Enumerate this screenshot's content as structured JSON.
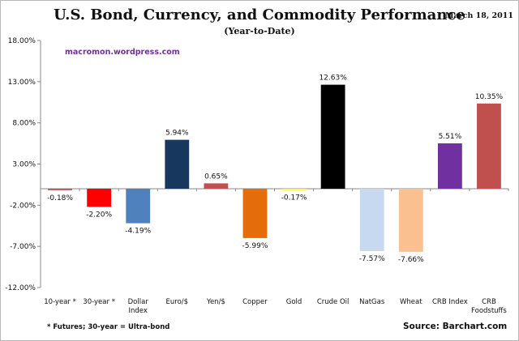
{
  "chart_data": {
    "type": "bar",
    "title": "U.S. Bond, Currency, and Commodity Performance",
    "subtitle": "(Year-to-Date)",
    "date": "March 18, 2011",
    "watermark": "macromon.wordpress.com",
    "footnote": "* Futures; 30-year = Ultra-bond",
    "source": "Source:  Barchart.com",
    "categories": [
      [
        "10-year *"
      ],
      [
        "30-year *"
      ],
      [
        "Dollar",
        "Index"
      ],
      [
        "Euro/$"
      ],
      [
        "Yen/$"
      ],
      [
        "Copper"
      ],
      [
        "Gold"
      ],
      [
        "Crude Oil"
      ],
      [
        "NatGas"
      ],
      [
        "Wheat"
      ],
      [
        "CRB Index"
      ],
      [
        "CRB",
        "Foodstuffs"
      ]
    ],
    "values": [
      -0.18,
      -2.2,
      -4.19,
      5.94,
      0.65,
      -5.99,
      -0.17,
      12.63,
      -7.57,
      -7.66,
      5.51,
      10.35
    ],
    "data_labels": [
      "-0.18%",
      "-2.20%",
      "-4.19%",
      "5.94%",
      "0.65%",
      "-5.99%",
      "-0.17%",
      "12.63%",
      "-7.57%",
      "-7.66%",
      "5.51%",
      "10.35%"
    ],
    "colors": [
      "#c0504d",
      "#ff0000",
      "#4f81bd",
      "#17375e",
      "#c0504d",
      "#e46c0a",
      "#ffff00",
      "#000000",
      "#c6d9f1",
      "#fac090",
      "#7030a0",
      "#c0504d"
    ],
    "yticks": [
      18,
      13,
      8,
      3,
      -2,
      -7,
      -12
    ],
    "ytick_labels": [
      "18.00%",
      "13.00%",
      "8.00%",
      "3.00%",
      "-2.00%",
      "-7.00%",
      "-12.00%"
    ],
    "ylim": [
      -12,
      18
    ],
    "xlabel": "",
    "ylabel": "",
    "grid": false,
    "legend": "none"
  }
}
